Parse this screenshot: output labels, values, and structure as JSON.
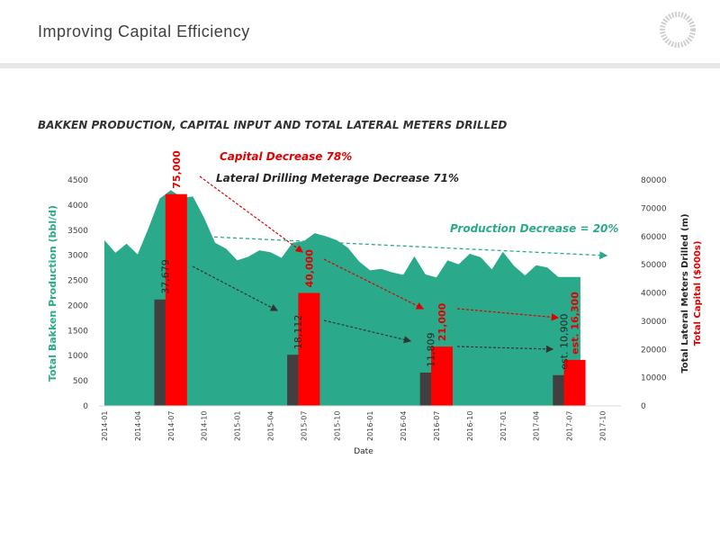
{
  "header": {
    "title": "Improving Capital Efficiency"
  },
  "chart_data": {
    "type": "area",
    "title": "BAKKEN PRODUCTION, CAPITAL INPUT AND TOTAL LATERAL METERS DRILLED",
    "xlabel": "Date",
    "ylabel_left": "Total Bakken Production (bbl/d)",
    "ylabel_right_1": "Total Lateral Meters Drilled (m)",
    "ylabel_right_2": "Total Capital ($000s)",
    "ylim_left": [
      0,
      4500
    ],
    "ylim_right": [
      0,
      80000
    ],
    "yticks_left": [
      "0",
      "500",
      "1000",
      "1500",
      "2000",
      "2500",
      "3000",
      "3500",
      "4000",
      "4500"
    ],
    "yticks_right": [
      "0",
      "10000",
      "20000",
      "30000",
      "40000",
      "50000",
      "60000",
      "70000",
      "80000"
    ],
    "xticks": [
      "2014-01",
      "2014-04",
      "2014-07",
      "2014-10",
      "2015-01",
      "2015-04",
      "2015-07",
      "2015-10",
      "2016-01",
      "2016-04",
      "2016-07",
      "2016-10",
      "2017-01",
      "2017-04",
      "2017-07",
      "2017-10"
    ],
    "production": {
      "dates": [
        "2014-01",
        "2014-02",
        "2014-03",
        "2014-04",
        "2014-05",
        "2014-06",
        "2014-07",
        "2014-08",
        "2014-09",
        "2014-10",
        "2014-11",
        "2014-12",
        "2015-01",
        "2015-02",
        "2015-03",
        "2015-04",
        "2015-05",
        "2015-06",
        "2015-07",
        "2015-08",
        "2015-09",
        "2015-10",
        "2015-11",
        "2015-12",
        "2016-01",
        "2016-02",
        "2016-03",
        "2016-04",
        "2016-05",
        "2016-06",
        "2016-07",
        "2016-08",
        "2016-09",
        "2016-10",
        "2016-11",
        "2016-12",
        "2017-01",
        "2017-02",
        "2017-03",
        "2017-04",
        "2017-05",
        "2017-06",
        "2017-07",
        "2017-08"
      ],
      "values": [
        3300,
        3050,
        3230,
        3020,
        3550,
        4130,
        4300,
        4150,
        4170,
        3750,
        3250,
        3130,
        2900,
        2970,
        3100,
        3060,
        2950,
        3250,
        3280,
        3440,
        3380,
        3300,
        3150,
        2880,
        2700,
        2730,
        2660,
        2610,
        2980,
        2620,
        2560,
        2900,
        2820,
        3030,
        2960,
        2720,
        3070,
        2790,
        2600,
        2800,
        2760,
        2570,
        2570,
        2570
      ]
    },
    "meters": [
      {
        "date": "2014-06",
        "value": 37679,
        "label": "37,679"
      },
      {
        "date": "2015-06",
        "value": 18112,
        "label": "18,112"
      },
      {
        "date": "2016-06",
        "value": 11809,
        "label": "11,809"
      },
      {
        "date": "2017-06",
        "value": 10900,
        "label": "est. 10,900"
      }
    ],
    "capital": [
      {
        "date": "2014-07",
        "value": 75000,
        "label": "75,000"
      },
      {
        "date": "2015-07",
        "value": 40000,
        "label": "40,000"
      },
      {
        "date": "2016-07",
        "value": 21000,
        "label": "21,000"
      },
      {
        "date": "2017-07",
        "value": 16300,
        "label": "est. 16,300"
      }
    ],
    "annotations": {
      "capital_decrease": "Capital Decrease 78%",
      "meterage_decrease": "Lateral Drilling Meterage Decrease 71%",
      "production_decrease": "Production Decrease = 20%"
    },
    "colors": {
      "production": "#2aaa8a",
      "meters": "#404040",
      "capital": "#ff0000",
      "production_label": "#2aaa8a",
      "capital_label": "#e00000"
    }
  }
}
